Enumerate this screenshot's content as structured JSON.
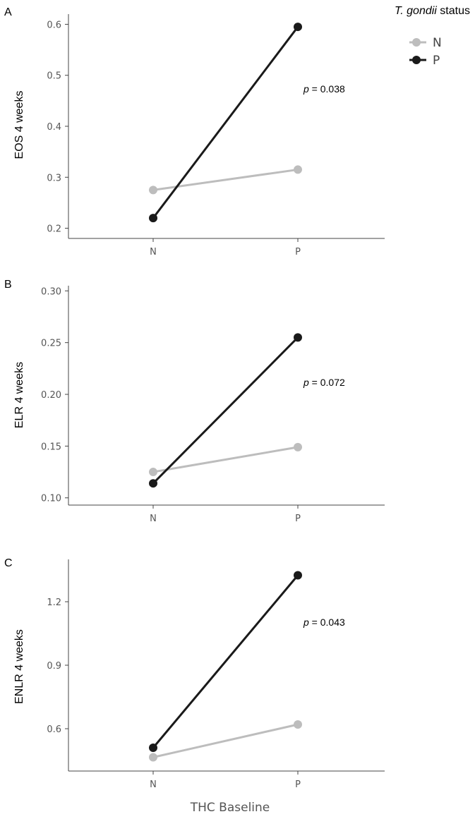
{
  "legend": {
    "title_italic": "T. gondii",
    "title_rest": " status",
    "entries": [
      {
        "label": "N",
        "color": "#bdbdbd"
      },
      {
        "label": "P",
        "color": "#1a1a1a"
      }
    ]
  },
  "x_axis_title": "THC Baseline",
  "chart_data": [
    {
      "type": "line",
      "panel": "A",
      "ylabel": "EOS 4 weeks",
      "categories": [
        "N",
        "P"
      ],
      "yticks": [
        "0.2",
        "0.3",
        "0.4",
        "0.5",
        "0.6"
      ],
      "ylim": [
        0.18,
        0.62
      ],
      "series": [
        {
          "name": "N",
          "values": [
            0.275,
            0.315
          ],
          "color": "#bdbdbd"
        },
        {
          "name": "P",
          "values": [
            0.22,
            0.595
          ],
          "color": "#1a1a1a"
        }
      ],
      "p_label": "p",
      "p_value": " = 0.038"
    },
    {
      "type": "line",
      "panel": "B",
      "ylabel": "ELR 4 weeks",
      "categories": [
        "N",
        "P"
      ],
      "yticks": [
        "0.10",
        "0.15",
        "0.20",
        "0.25",
        "0.30"
      ],
      "ylim": [
        0.093,
        0.305
      ],
      "series": [
        {
          "name": "N",
          "values": [
            0.125,
            0.149
          ],
          "color": "#bdbdbd"
        },
        {
          "name": "P",
          "values": [
            0.114,
            0.255
          ],
          "color": "#1a1a1a"
        }
      ],
      "p_label": "p",
      "p_value": " = 0.072"
    },
    {
      "type": "line",
      "panel": "C",
      "ylabel": "ENLR 4 weeks",
      "categories": [
        "N",
        "P"
      ],
      "yticks": [
        "0.6",
        "0.9",
        "1.2"
      ],
      "ylim": [
        0.4,
        1.4
      ],
      "series": [
        {
          "name": "N",
          "values": [
            0.465,
            0.62
          ],
          "color": "#bdbdbd"
        },
        {
          "name": "P",
          "values": [
            0.51,
            1.325
          ],
          "color": "#1a1a1a"
        }
      ],
      "p_label": "p",
      "p_value": " = 0.043"
    }
  ]
}
